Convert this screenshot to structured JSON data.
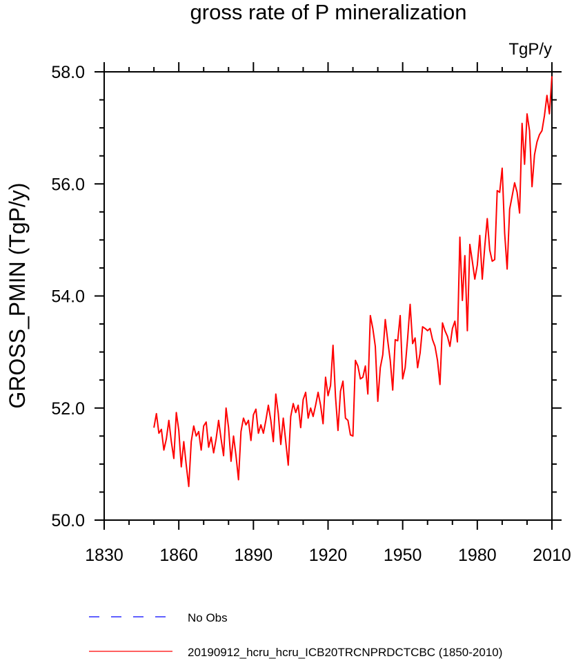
{
  "chart_data": {
    "type": "line",
    "title": "gross rate of P mineralization",
    "units": "TgP/y",
    "xlabel": "",
    "ylabel": "GROSS_PMIN  (TgP/y)",
    "xlim": [
      1830,
      2010
    ],
    "ylim": [
      50.0,
      58.0
    ],
    "xticks": [
      1830,
      1860,
      1890,
      1920,
      1950,
      1980,
      2010
    ],
    "xtick_labels": [
      "1830",
      "1860",
      "1890",
      "1920",
      "1950",
      "1980",
      "2010"
    ],
    "yticks": [
      50.0,
      52.0,
      54.0,
      56.0,
      58.0
    ],
    "ytick_labels": [
      "50.0",
      "52.0",
      "54.0",
      "56.0",
      "58.0"
    ],
    "legend_position": "bottom",
    "series": [
      {
        "name": "No Obs",
        "legend_label": "No Obs",
        "color": "#0000ff",
        "style": "dashed",
        "x": [],
        "values": []
      },
      {
        "name": "20190912_hcru_hcru_ICB20TRCNPRDCTCBC",
        "legend_label": "20190912_hcru_hcru_ICB20TRCNPRDCTCBC (1850-2010)",
        "color": "#ff0000",
        "style": "solid",
        "x_start": 1850,
        "x_end": 2010,
        "values": [
          51.65,
          51.9,
          51.55,
          51.62,
          51.25,
          51.45,
          51.78,
          51.4,
          51.1,
          51.92,
          51.6,
          50.95,
          51.4,
          50.98,
          50.6,
          51.4,
          51.68,
          51.5,
          51.58,
          51.25,
          51.68,
          51.75,
          51.3,
          51.48,
          51.2,
          51.45,
          51.78,
          51.45,
          51.15,
          52.0,
          51.65,
          51.05,
          51.5,
          51.15,
          50.72,
          51.58,
          51.82,
          51.7,
          51.78,
          51.42,
          51.88,
          51.98,
          51.55,
          51.7,
          51.55,
          51.78,
          52.05,
          51.78,
          51.4,
          52.25,
          51.9,
          51.35,
          51.82,
          51.4,
          50.98,
          51.85,
          52.08,
          51.92,
          52.05,
          51.65,
          52.15,
          52.28,
          51.82,
          52.0,
          51.85,
          52.05,
          52.28,
          52.05,
          51.72,
          52.55,
          52.22,
          52.4,
          53.12,
          52.2,
          51.6,
          52.3,
          52.48,
          51.82,
          51.78,
          51.52,
          51.5,
          52.85,
          52.75,
          52.52,
          52.55,
          52.75,
          52.25,
          53.65,
          53.42,
          53.1,
          52.12,
          52.72,
          52.95,
          53.58,
          53.2,
          52.85,
          52.32,
          53.22,
          53.2,
          53.65,
          52.52,
          52.72,
          53.25,
          53.85,
          53.15,
          53.25,
          52.72,
          52.98,
          53.45,
          53.42,
          53.38,
          53.42,
          53.22,
          53.1,
          52.85,
          52.42,
          53.52,
          53.38,
          53.28,
          53.1,
          53.42,
          53.55,
          53.18,
          55.05,
          53.92,
          54.72,
          53.38,
          54.92,
          54.62,
          54.3,
          54.55,
          55.08,
          54.3,
          54.88,
          55.38,
          54.82,
          54.62,
          54.65,
          55.88,
          55.85,
          56.28,
          55.12,
          54.48,
          55.55,
          55.78,
          56.02,
          55.85,
          55.48,
          57.08,
          56.35,
          57.25,
          56.95,
          55.95,
          56.52,
          56.75,
          56.88,
          56.95,
          57.22,
          57.58,
          57.25,
          57.92
        ]
      }
    ]
  }
}
